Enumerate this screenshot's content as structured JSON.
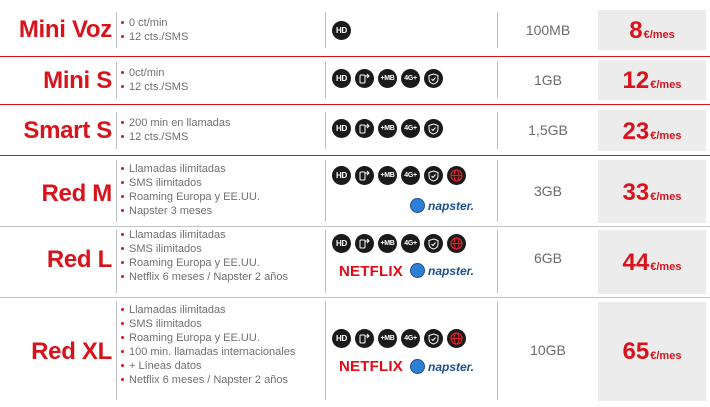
{
  "plans": [
    {
      "name": "Mini Voz",
      "features": [
        "0 ct/min",
        "12 cts./SMS"
      ],
      "services": [
        "hd"
      ],
      "data": "100MB",
      "price": "8",
      "unit": "€/mes"
    },
    {
      "name": "Mini S",
      "features": [
        "0ct/min",
        "12 cts./SMS"
      ],
      "services": [
        "hd",
        "roaming",
        "plusmb",
        "4g",
        "shield"
      ],
      "data": "1GB",
      "price": "12",
      "unit": "€/mes"
    },
    {
      "name": "Smart S",
      "features": [
        "200 min en llamadas",
        "12 cts./SMS"
      ],
      "services": [
        "hd",
        "roaming",
        "plusmb",
        "4g",
        "shield"
      ],
      "data": "1,5GB",
      "price": "23",
      "unit": "€/mes"
    },
    {
      "name": "Red M",
      "features": [
        "Llamadas ilimitadas",
        "SMS ilimitados",
        "Roaming Europa y EE.UU.",
        "Napster 3 meses"
      ],
      "services": [
        "hd",
        "roaming",
        "plusmb",
        "4g",
        "shield",
        "globe"
      ],
      "data": "3GB",
      "price": "33",
      "unit": "€/mes"
    },
    {
      "name": "Red L",
      "features": [
        "Llamadas ilimitadas",
        "SMS ilimitados",
        "Roaming Europa y EE.UU.",
        "Netflix 6 meses / Napster 2 años"
      ],
      "services": [
        "hd",
        "roaming",
        "plusmb",
        "4g",
        "shield",
        "globe"
      ],
      "data": "6GB",
      "price": "44",
      "unit": "€/mes"
    },
    {
      "name": "Red XL",
      "features": [
        "Llamadas ilimitadas",
        "SMS ilimitados",
        "Roaming Europa y EE.UU.",
        "100 min. llamadas internacionales",
        "+ Líneas datos",
        "Netflix 6 meses / Napster 2 años"
      ],
      "services": [
        "hd",
        "roaming",
        "plusmb",
        "4g",
        "shield",
        "globe"
      ],
      "data": "10GB",
      "price": "65",
      "unit": "€/mes"
    }
  ],
  "service_labels": {
    "hd": "HD",
    "plusmb": "+MB",
    "4g": "4G+"
  },
  "logos": {
    "netflix": "NETFLIX",
    "napster": "napster."
  },
  "colors": {
    "accent": "#d9131c",
    "price_bg": "#ececec",
    "icon_bg": "#1a1a1a"
  }
}
